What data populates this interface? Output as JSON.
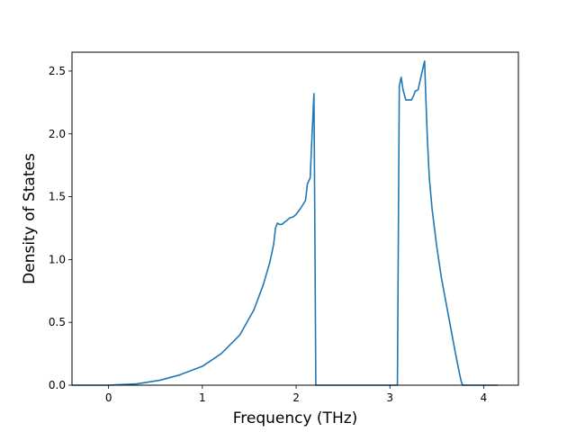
{
  "chart_data": {
    "type": "line",
    "title": "",
    "xlabel": "Frequency (THz)",
    "ylabel": "Density of States",
    "xlim": [
      -0.39,
      4.37
    ],
    "ylim": [
      0,
      2.65
    ],
    "xticks": [
      0,
      1,
      2,
      3,
      4
    ],
    "xtick_labels": [
      "0",
      "1",
      "2",
      "3",
      "4"
    ],
    "yticks": [
      0.0,
      0.5,
      1.0,
      1.5,
      2.0,
      2.5
    ],
    "ytick_labels": [
      "0.0",
      "0.5",
      "1.0",
      "1.5",
      "2.0",
      "2.5"
    ],
    "grid": false,
    "legend": "none",
    "series": [
      {
        "color": "#1f77b4",
        "x": [
          -0.39,
          0.0,
          0.3,
          0.55,
          0.75,
          1.0,
          1.2,
          1.4,
          1.55,
          1.65,
          1.72,
          1.76,
          1.78,
          1.8,
          1.82,
          1.85,
          1.88,
          1.9,
          1.93,
          1.97,
          2.0,
          2.05,
          2.1,
          2.12,
          2.15,
          2.17,
          2.19,
          2.2,
          2.21,
          2.22,
          3.08,
          3.1,
          3.12,
          3.14,
          3.17,
          3.2,
          3.23,
          3.25,
          3.27,
          3.3,
          3.33,
          3.36,
          3.37,
          3.38,
          3.4,
          3.42,
          3.45,
          3.5,
          3.55,
          3.6,
          3.65,
          3.7,
          3.74,
          3.76,
          3.77,
          3.78,
          3.8,
          4.15
        ],
        "y": [
          0.0,
          0.0,
          0.01,
          0.04,
          0.08,
          0.15,
          0.25,
          0.4,
          0.6,
          0.8,
          0.98,
          1.12,
          1.25,
          1.29,
          1.28,
          1.28,
          1.3,
          1.31,
          1.33,
          1.34,
          1.36,
          1.41,
          1.47,
          1.6,
          1.65,
          2.0,
          2.32,
          1.2,
          0.0,
          0.0,
          0.0,
          2.38,
          2.45,
          2.35,
          2.27,
          2.27,
          2.27,
          2.3,
          2.34,
          2.35,
          2.45,
          2.55,
          2.58,
          2.35,
          1.95,
          1.65,
          1.4,
          1.1,
          0.85,
          0.65,
          0.45,
          0.25,
          0.1,
          0.03,
          0.01,
          0.0,
          0.0,
          0.0
        ]
      }
    ]
  }
}
